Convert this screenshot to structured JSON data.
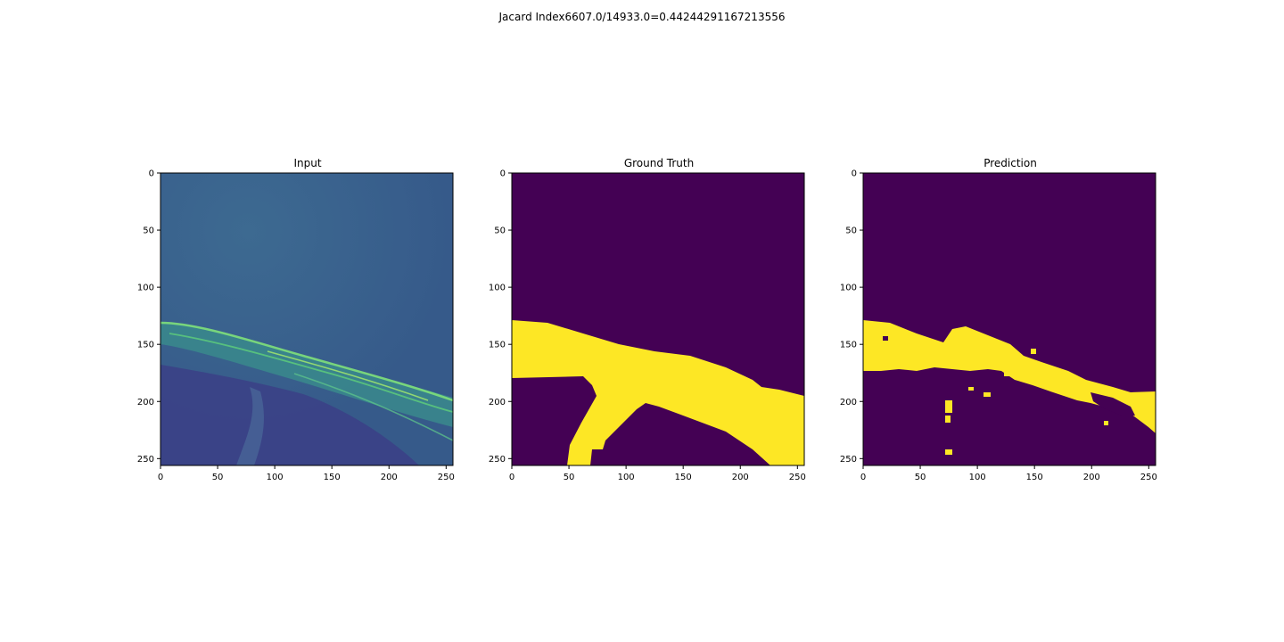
{
  "figure": {
    "suptitle": "Jacard Index6607.0/14933.0=0.44244291167213556"
  },
  "panels": [
    {
      "title": "Input"
    },
    {
      "title": "Ground Truth"
    },
    {
      "title": "Prediction"
    }
  ],
  "axes": {
    "x_ticks": [
      "0",
      "50",
      "100",
      "150",
      "200",
      "250"
    ],
    "y_ticks": [
      "0",
      "50",
      "100",
      "150",
      "200",
      "250"
    ],
    "x_tick_values": [
      0,
      50,
      100,
      150,
      200,
      250
    ],
    "y_tick_values": [
      0,
      50,
      100,
      150,
      200,
      250
    ],
    "range": [
      0,
      256
    ]
  },
  "colors": {
    "background_dark": "#440154",
    "foreground_yellow": "#fde725",
    "input_base": "#3b5b8c",
    "input_highlight": "#6ee06a"
  }
}
